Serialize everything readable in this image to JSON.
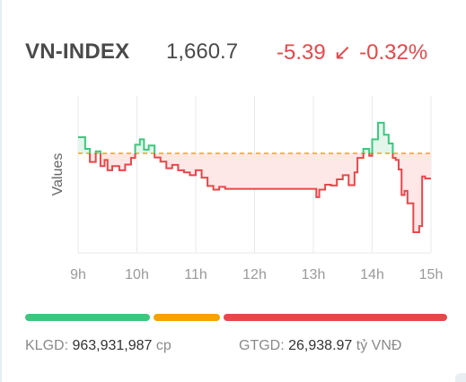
{
  "index": {
    "name": "VN-INDEX",
    "value": "1,660.7",
    "change": "-5.39",
    "arrow": "↙",
    "change_pct": "-0.32%"
  },
  "colors": {
    "up": "#3cc77f",
    "down": "#e8474a",
    "reference": "#f5a300",
    "grid": "#e9e9e9",
    "fill_down": "#fde7e7",
    "fill_up": "#e4f6ec"
  },
  "chart_data": {
    "type": "line",
    "ylabel": "Values",
    "xlabel": "",
    "categories": [
      "9h",
      "10h",
      "11h",
      "12h",
      "13h",
      "14h",
      "15h"
    ],
    "reference": 1666.09,
    "ylim": [
      1642,
      1680
    ],
    "grid": true,
    "series": [
      {
        "x": [
          9.0,
          9.12,
          9.2,
          9.3,
          9.38,
          9.45,
          9.5,
          9.58,
          9.7,
          9.8,
          9.9,
          9.97,
          10.05,
          10.12,
          10.2,
          10.3,
          10.4,
          10.5,
          10.6,
          10.7,
          10.8,
          10.9,
          11.0,
          11.1,
          11.2,
          11.3,
          11.4,
          11.5,
          11.6,
          11.7,
          11.8,
          11.9,
          13.0,
          13.05,
          13.1,
          13.2,
          13.3,
          13.4,
          13.5,
          13.6,
          13.7,
          13.75,
          13.85,
          13.95,
          14.0,
          14.1,
          14.2,
          14.28,
          14.35,
          14.4,
          14.45,
          14.5,
          14.55,
          14.6,
          14.7,
          14.8,
          14.85,
          14.9,
          15.0
        ],
        "y": [
          1670.0,
          1667.2,
          1664.0,
          1666.6,
          1663.0,
          1664.5,
          1662.0,
          1663.0,
          1662.0,
          1663.4,
          1665.0,
          1668.2,
          1669.5,
          1667.0,
          1668.0,
          1665.1,
          1664.1,
          1662.5,
          1663.3,
          1662.0,
          1661.5,
          1660.8,
          1662.0,
          1660.2,
          1658.2,
          1657.3,
          1658.0,
          1657.5,
          1657.5,
          1657.5,
          1657.5,
          1657.5,
          1657.5,
          1655.5,
          1657.3,
          1658.5,
          1658.3,
          1659.8,
          1660.8,
          1658.4,
          1661.5,
          1665.0,
          1667.2,
          1665.5,
          1669.5,
          1673.5,
          1670.6,
          1668.5,
          1665.0,
          1664.5,
          1662.2,
          1656.0,
          1657.0,
          1654.0,
          1647.0,
          1648.5,
          1660.5,
          1660.0,
          1660.0
        ]
      }
    ]
  },
  "footer": {
    "klgd_label": "KLGD:",
    "klgd_value": "963,931,987",
    "klgd_unit": "cp",
    "gtgd_label": "GTGD:",
    "gtgd_value": "26,938.97",
    "gtgd_unit": "tỷ VNĐ"
  },
  "breadth_bar": {
    "advancing_fraction": 0.3,
    "unchanged_fraction": 0.165,
    "declining_fraction": 0.535
  }
}
